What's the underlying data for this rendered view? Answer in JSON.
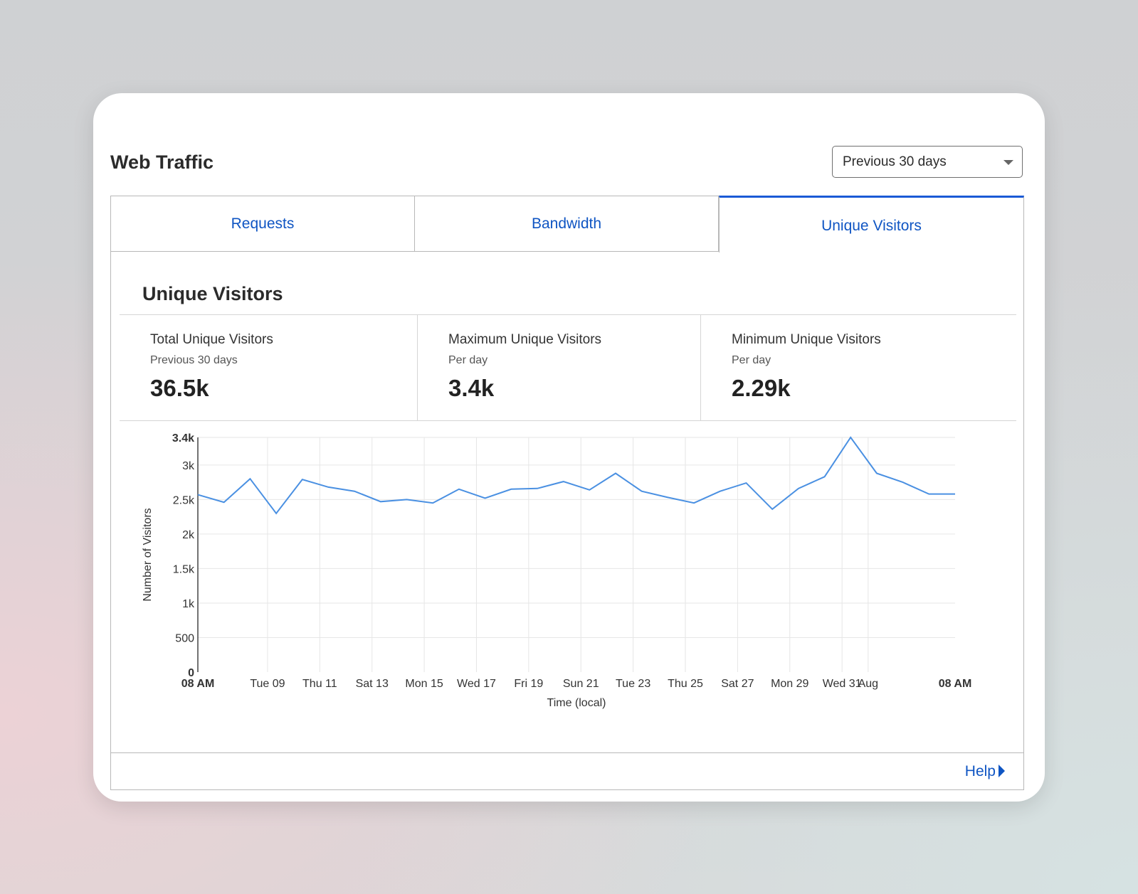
{
  "header": {
    "title": "Web Traffic",
    "range_select": "Previous 30 days"
  },
  "tabs": [
    {
      "label": "Requests",
      "active": false
    },
    {
      "label": "Bandwidth",
      "active": false
    },
    {
      "label": "Unique Visitors",
      "active": true
    }
  ],
  "section": {
    "title": "Unique Visitors",
    "stats": [
      {
        "label": "Total Unique Visitors",
        "sub": "Previous 30 days",
        "value": "36.5k"
      },
      {
        "label": "Maximum Unique Visitors",
        "sub": "Per day",
        "value": "3.4k"
      },
      {
        "label": "Minimum Unique Visitors",
        "sub": "Per day",
        "value": "2.29k"
      }
    ]
  },
  "footer": {
    "help_label": "Help"
  },
  "colors": {
    "accent": "#0f55c3",
    "line": "#4a90e2",
    "grid": "#e6e6e6"
  },
  "chart_data": {
    "type": "line",
    "xlabel": "Time (local)",
    "ylabel": "Number of Visitors",
    "ylim": [
      0,
      3400
    ],
    "y_ticks": [
      {
        "value": 0,
        "label": "0"
      },
      {
        "value": 500,
        "label": "500"
      },
      {
        "value": 1000,
        "label": "1k"
      },
      {
        "value": 1500,
        "label": "1.5k"
      },
      {
        "value": 2000,
        "label": "2k"
      },
      {
        "value": 2500,
        "label": "2.5k"
      },
      {
        "value": 3000,
        "label": "3k"
      },
      {
        "value": 3400,
        "label": "3.4k"
      }
    ],
    "x_ticks": [
      {
        "pos": 0,
        "label": "08 AM"
      },
      {
        "pos": 2.67,
        "label": "Tue 09"
      },
      {
        "pos": 4.67,
        "label": "Thu 11"
      },
      {
        "pos": 6.67,
        "label": "Sat 13"
      },
      {
        "pos": 8.67,
        "label": "Mon 15"
      },
      {
        "pos": 10.67,
        "label": "Wed 17"
      },
      {
        "pos": 12.67,
        "label": "Fri 19"
      },
      {
        "pos": 14.67,
        "label": "Sun 21"
      },
      {
        "pos": 16.67,
        "label": "Tue 23"
      },
      {
        "pos": 18.67,
        "label": "Thu 25"
      },
      {
        "pos": 20.67,
        "label": "Sat 27"
      },
      {
        "pos": 22.67,
        "label": "Mon 29"
      },
      {
        "pos": 24.67,
        "label": "Wed 31"
      },
      {
        "pos": 25.67,
        "label": "Aug"
      },
      {
        "pos": 29,
        "label": "08 AM"
      }
    ],
    "series": [
      {
        "values": [
          2570,
          2460,
          2800,
          2300,
          2790,
          2680,
          2620,
          2470,
          2500,
          2450,
          2650,
          2520,
          2650,
          2660,
          2760,
          2640,
          2880,
          2620,
          2530,
          2450,
          2620,
          2740,
          2360,
          2660,
          2830,
          3400,
          2880,
          2750,
          2580,
          2580
        ]
      }
    ]
  }
}
